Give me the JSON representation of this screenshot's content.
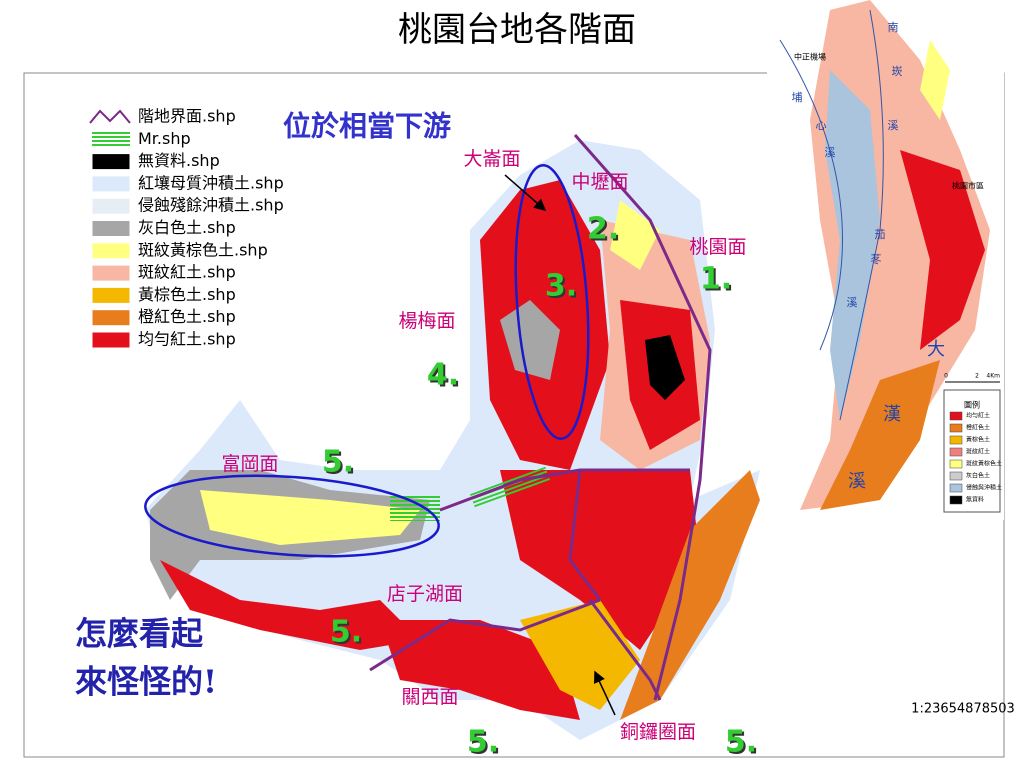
{
  "title": "桃園台地各階面",
  "legend": [
    {
      "label": "階地界面.shp",
      "color": "#7b2a8a"
    },
    {
      "label": "Mr.shp",
      "color": "#33cc33"
    },
    {
      "label": "無資料.shp",
      "color": "#000000"
    },
    {
      "label": "紅壤母質沖積土.shp",
      "color": "#dbe9fb"
    },
    {
      "label": "侵蝕殘餘沖積土.shp",
      "color": "#e6edf5"
    },
    {
      "label": "灰白色土.shp",
      "color": "#a6a6a6"
    },
    {
      "label": "斑紋黃棕色土.shp",
      "color": "#ffff80"
    },
    {
      "label": "斑紋紅土.shp",
      "color": "#f7b7a3"
    },
    {
      "label": "黃棕色土.shp",
      "color": "#f5b800"
    },
    {
      "label": "橙紅色土.shp",
      "color": "#e87d1e"
    },
    {
      "label": "均勻紅土.shp",
      "color": "#e3101c"
    }
  ],
  "annotation": "位於相當下游",
  "surface_labels": [
    "大崙面",
    "中壢面",
    "桃園面",
    "楊梅面",
    "富岡面",
    "店子湖面",
    "關西面",
    "銅鑼圈面"
  ],
  "stage_numbers": [
    "1.",
    "2.",
    "3.",
    "4.",
    "5.",
    "5.",
    "5.",
    "5."
  ],
  "comment": [
    "怎麼看起",
    "來怪怪的!"
  ],
  "scale": "1:23654878503",
  "inset": {
    "river_labels": [
      "南",
      "崁",
      "溪",
      "埔",
      "心",
      "溪",
      "茄",
      "苳",
      "溪",
      "大",
      "漢",
      "溪"
    ],
    "place_labels": [
      "中正機場",
      "桃園市區"
    ],
    "scale_ticks": [
      "0",
      "2",
      "4Km"
    ],
    "legend_title": "圖例",
    "legend": [
      {
        "label": "均勻紅土",
        "color": "#e3101c"
      },
      {
        "label": "橙紅色土",
        "color": "#e87d1e"
      },
      {
        "label": "黃棕色土",
        "color": "#f5b800"
      },
      {
        "label": "斑紋紅土",
        "color": "#f08080"
      },
      {
        "label": "斑紋黃棕色土",
        "color": "#ffff80"
      },
      {
        "label": "灰白色土",
        "color": "#cccccc"
      },
      {
        "label": "侵蝕與沖積土",
        "color": "#a9c4dc"
      },
      {
        "label": "無資料",
        "color": "#000000"
      }
    ]
  }
}
